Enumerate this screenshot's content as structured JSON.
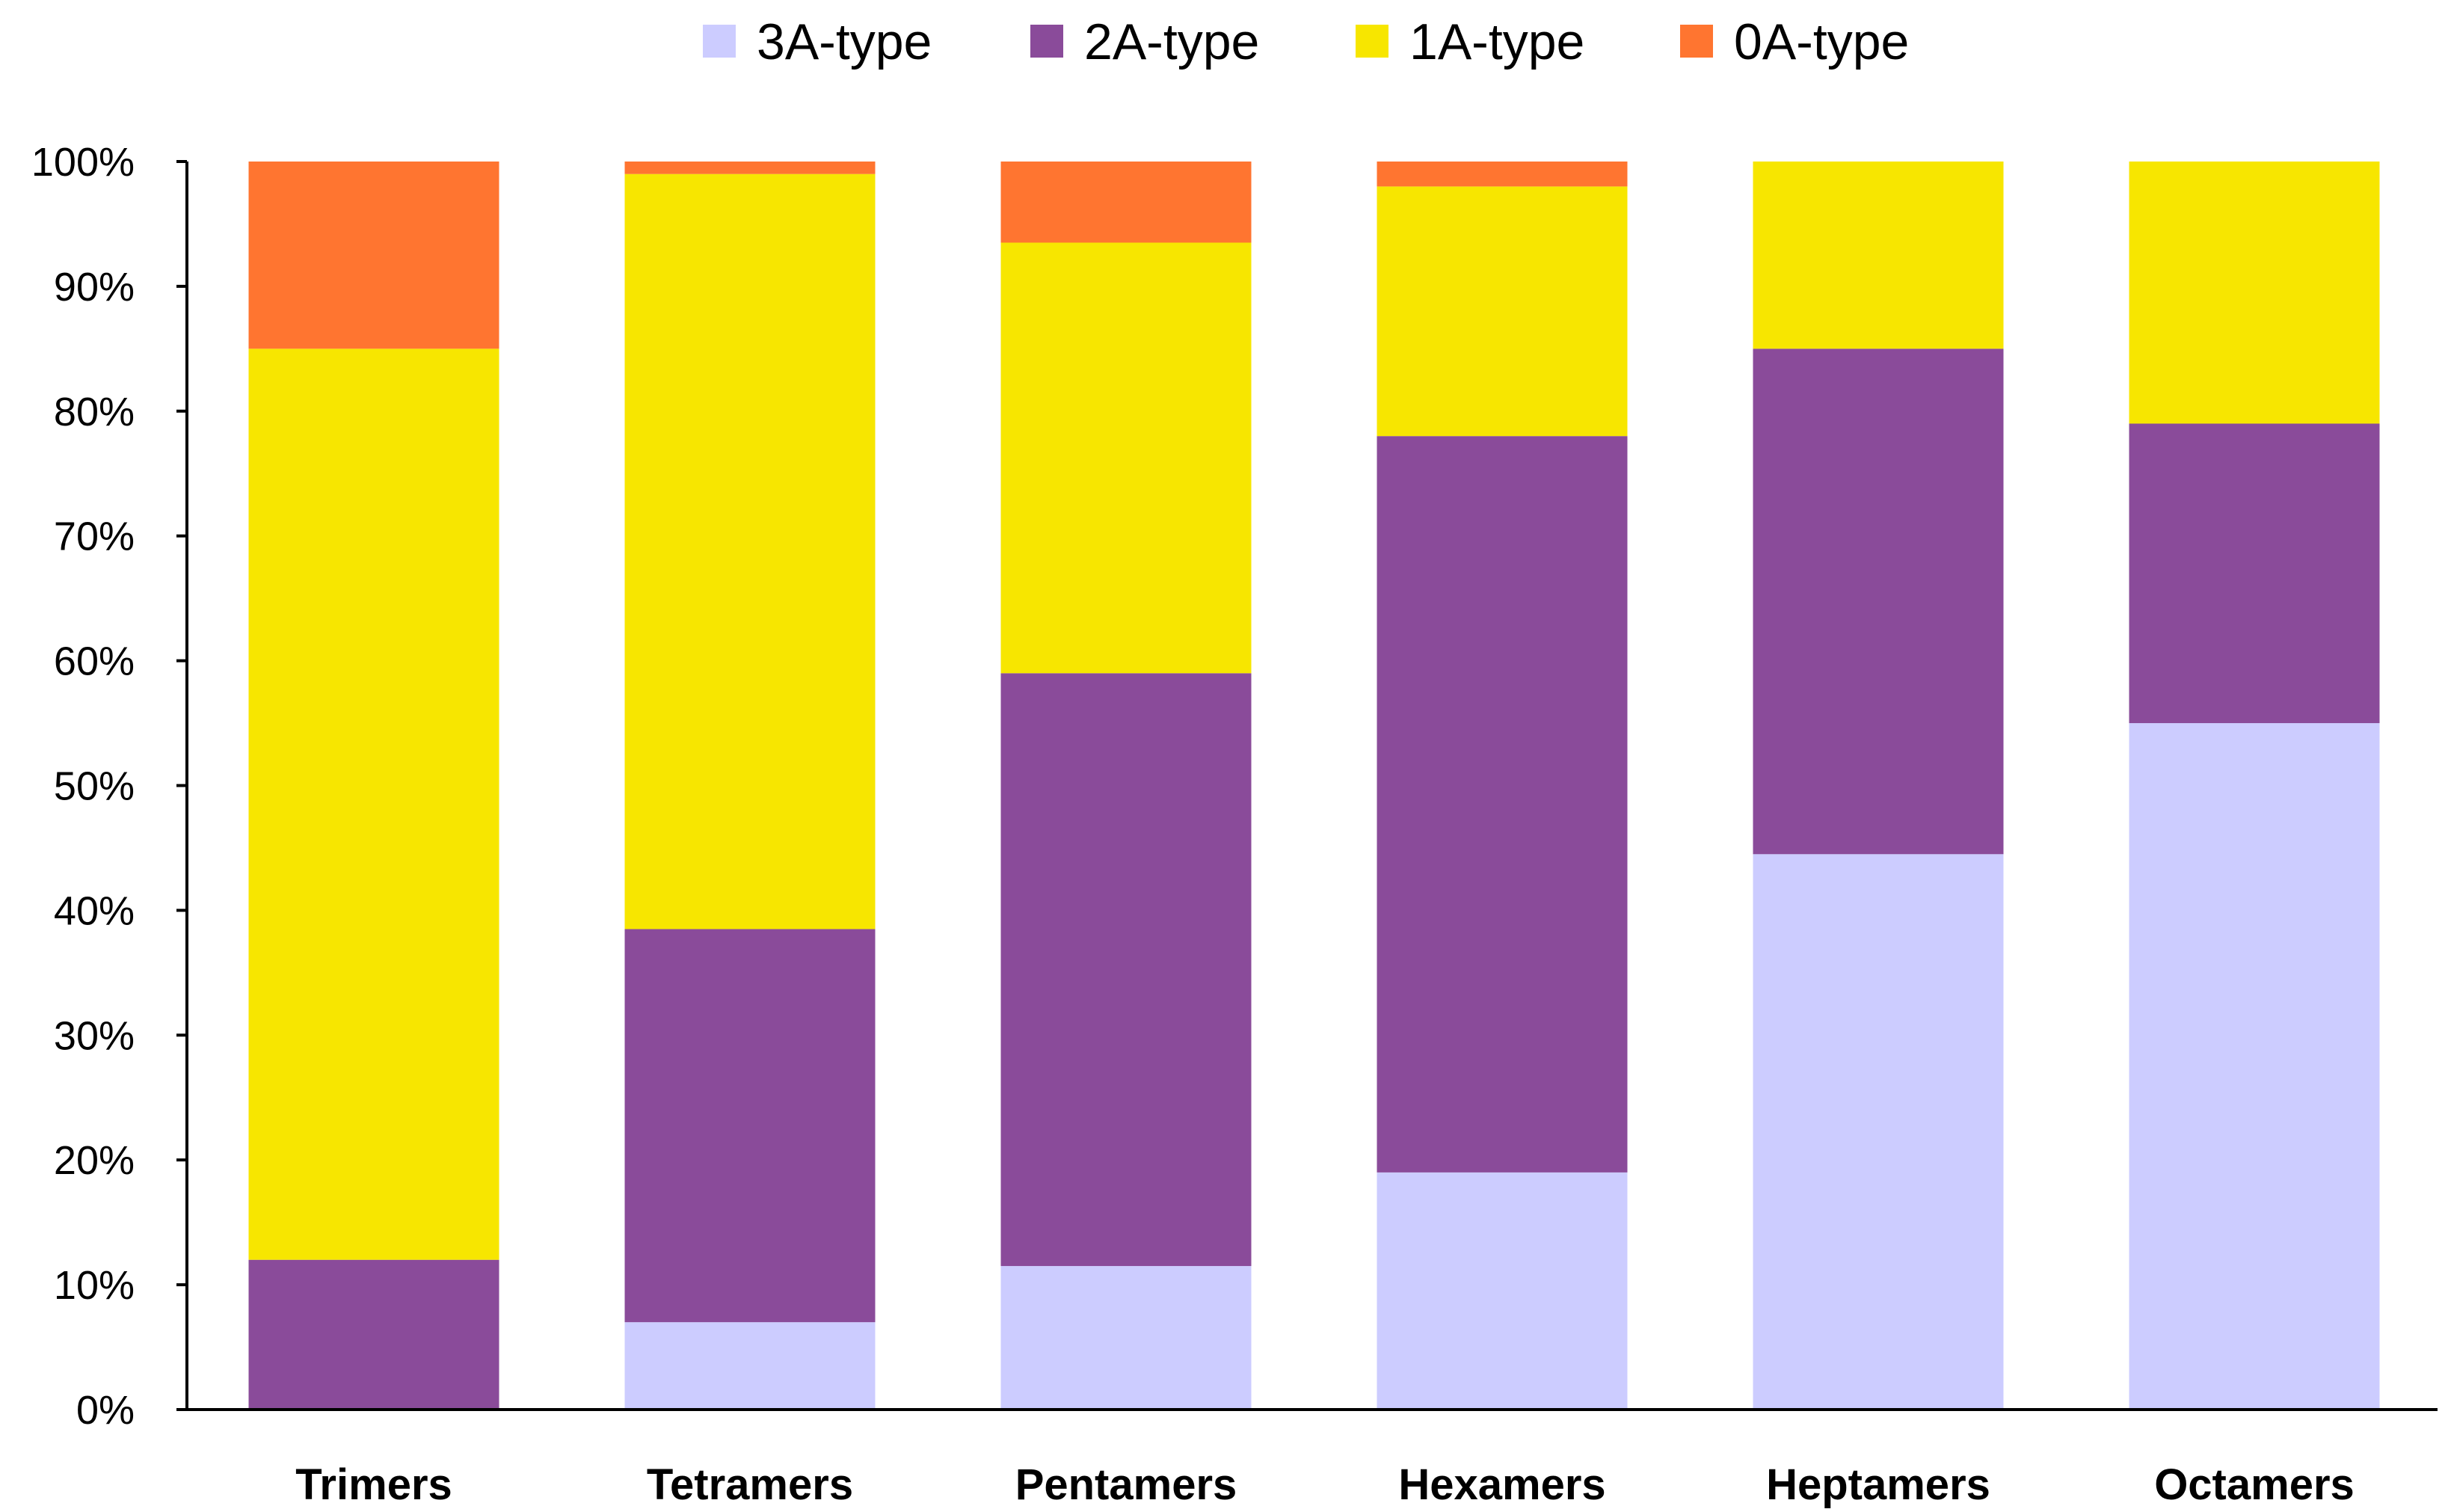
{
  "chart_data": {
    "type": "bar",
    "stacked": true,
    "percent_stacked": true,
    "title": "",
    "xlabel": "",
    "ylabel": "",
    "ylim": [
      0,
      100
    ],
    "yticks": [
      0,
      10,
      20,
      30,
      40,
      50,
      60,
      70,
      80,
      90,
      100
    ],
    "ytick_labels": [
      "0%",
      "10%",
      "20%",
      "30%",
      "40%",
      "50%",
      "60%",
      "70%",
      "80%",
      "90%",
      "100%"
    ],
    "grid": false,
    "legend_position": "top-center",
    "categories": [
      "Trimers",
      "Tetramers",
      "Pentamers",
      "Hexamers",
      "Heptamers",
      "Octamers"
    ],
    "series": [
      {
        "name": "3A-type",
        "color": "#CCCCFF",
        "values": [
          0,
          7,
          11.5,
          19,
          44.5,
          55
        ]
      },
      {
        "name": "2A-type",
        "color": "#8A4B9A",
        "values": [
          12,
          31.5,
          47.5,
          59,
          40.5,
          24
        ]
      },
      {
        "name": "1A-type",
        "color": "#F7E600",
        "values": [
          73,
          60.5,
          34.5,
          20,
          15,
          21
        ]
      },
      {
        "name": "0A-type",
        "color": "#FF7530",
        "values": [
          15,
          1,
          6.5,
          2,
          0,
          0
        ]
      }
    ]
  }
}
